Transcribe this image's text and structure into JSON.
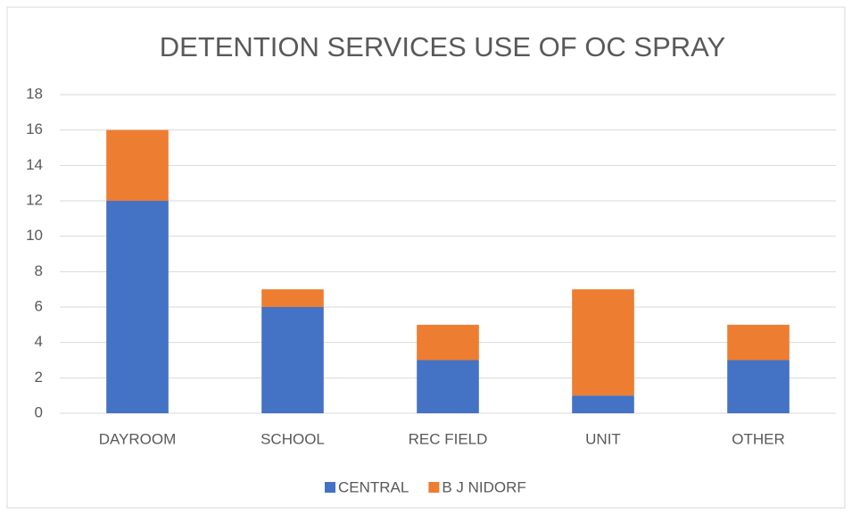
{
  "chart_data": {
    "type": "stacked_bar",
    "title": "DETENTION SERVICES USE OF OC SPRAY",
    "categories": [
      "DAYROOM",
      "SCHOOL",
      "REC FIELD",
      "UNIT",
      "OTHER"
    ],
    "series": [
      {
        "name": "CENTRAL",
        "color": "#4472c4",
        "values": [
          12,
          6,
          3,
          1,
          3
        ]
      },
      {
        "name": "B J NIDORF",
        "color": "#ed7d31",
        "values": [
          4,
          1,
          2,
          6,
          2
        ]
      }
    ],
    "ylim": [
      0,
      18
    ],
    "yticks": [
      0,
      2,
      4,
      6,
      8,
      10,
      12,
      14,
      16,
      18
    ],
    "grid": true,
    "legend": "bottom"
  }
}
